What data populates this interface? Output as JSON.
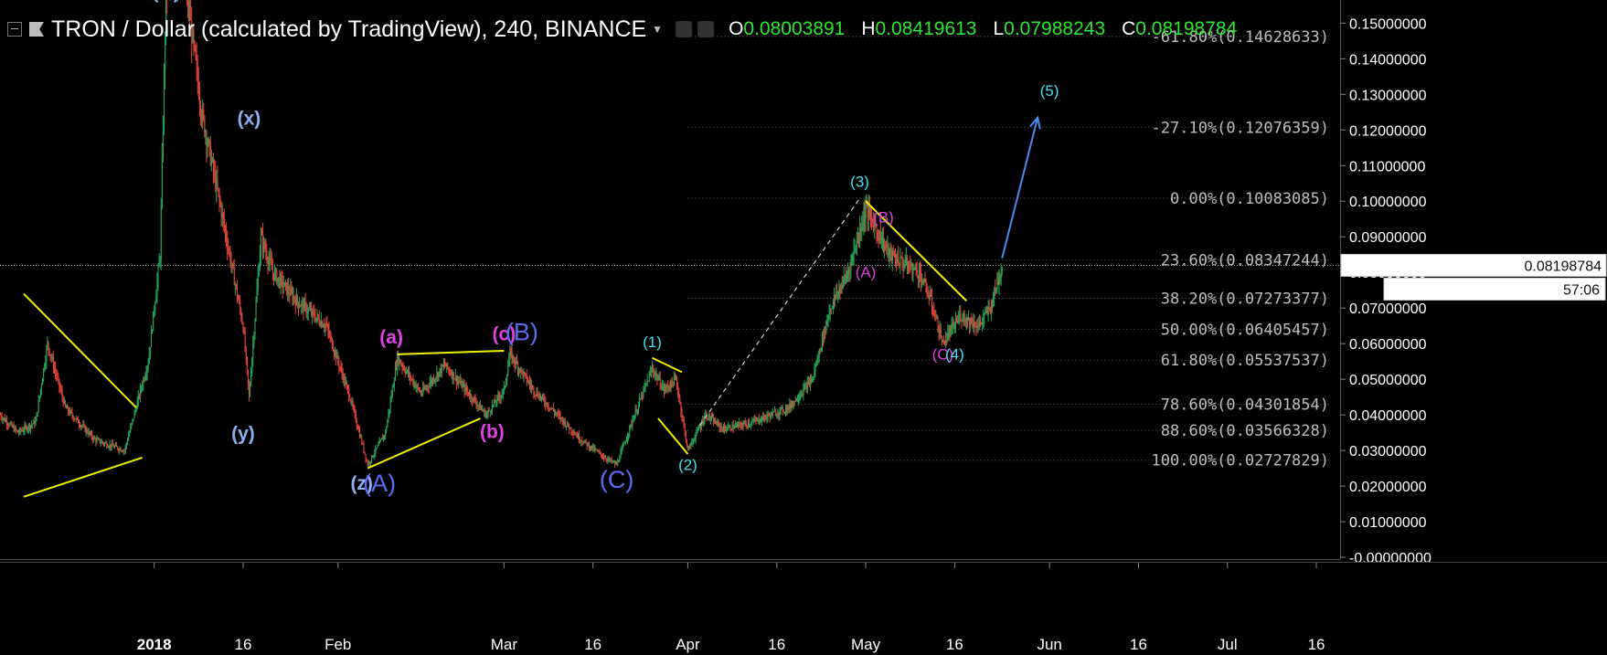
{
  "header": {
    "symbol_title": "TRON / Dollar (calculated by TradingView), 240, BINANCE",
    "ohlc": [
      {
        "key": "O",
        "value": "0.08003891"
      },
      {
        "key": "H",
        "value": "0.08419613"
      },
      {
        "key": "L",
        "value": "0.07988243"
      },
      {
        "key": "C",
        "value": "0.08198784"
      }
    ]
  },
  "colors": {
    "background": "#000000",
    "up": "#26a65b",
    "down": "#e0443a",
    "trendline": "#f0f000",
    "wave_cyan": "#40e0f0",
    "wave_magenta": "#e040e0",
    "wave_blue": "#5a6cf0",
    "wave_lightblue": "#8fb0f0",
    "arrow": "#4a8ae8",
    "axis_text": "#ffffff",
    "ohlc_value": "#2ee62e"
  },
  "chart_data": {
    "type": "candlestick",
    "price_axis": {
      "range": [
        -0.0005,
        0.1565
      ],
      "ticks": [
        "0.15000000",
        "0.14000000",
        "0.13000000",
        "0.12000000",
        "0.11000000",
        "0.10000000",
        "0.09000000",
        "0.08000000",
        "0.07000000",
        "0.06000000",
        "0.05000000",
        "0.04000000",
        "0.03000000",
        "0.02000000",
        "0.01000000",
        "-0.00000000"
      ],
      "tick_values": [
        0.15,
        0.14,
        0.13,
        0.12,
        0.11,
        0.1,
        0.09,
        0.08,
        0.07,
        0.06,
        0.05,
        0.04,
        0.03,
        0.02,
        0.01,
        0.0
      ],
      "current_price": "0.08198784",
      "countdown": "57:06"
    },
    "time_axis": {
      "range": [
        "2017-12-06",
        "2018-07-20"
      ],
      "labels": [
        {
          "text": "2018",
          "date": "2018-01-01"
        },
        {
          "text": "16",
          "date": "2018-01-16"
        },
        {
          "text": "Feb",
          "date": "2018-02-01"
        },
        {
          "text": "Mar",
          "date": "2018-03-01"
        },
        {
          "text": "16",
          "date": "2018-03-16"
        },
        {
          "text": "Apr",
          "date": "2018-04-01"
        },
        {
          "text": "16",
          "date": "2018-04-16"
        },
        {
          "text": "May",
          "date": "2018-05-01"
        },
        {
          "text": "16",
          "date": "2018-05-16"
        },
        {
          "text": "Jun",
          "date": "2018-06-01"
        },
        {
          "text": "16",
          "date": "2018-06-16"
        },
        {
          "text": "Jul",
          "date": "2018-07-01"
        },
        {
          "text": "16",
          "date": "2018-07-16"
        }
      ]
    },
    "price_path": [
      [
        "2017-12-06",
        0.04
      ],
      [
        "2017-12-09",
        0.035
      ],
      [
        "2017-12-12",
        0.038
      ],
      [
        "2017-12-14",
        0.06
      ],
      [
        "2017-12-17",
        0.042
      ],
      [
        "2017-12-22",
        0.033
      ],
      [
        "2017-12-27",
        0.03
      ],
      [
        "2017-12-31",
        0.055
      ],
      [
        "2018-01-02",
        0.085
      ],
      [
        "2018-01-03",
        0.16
      ],
      [
        "2018-01-06",
        0.165
      ],
      [
        "2018-01-09",
        0.125
      ],
      [
        "2018-01-12",
        0.1
      ],
      [
        "2018-01-16",
        0.065
      ],
      [
        "2018-01-17",
        0.045
      ],
      [
        "2018-01-19",
        0.09
      ],
      [
        "2018-01-21",
        0.08
      ],
      [
        "2018-01-25",
        0.072
      ],
      [
        "2018-01-30",
        0.065
      ],
      [
        "2018-02-03",
        0.045
      ],
      [
        "2018-02-06",
        0.026
      ],
      [
        "2018-02-09",
        0.035
      ],
      [
        "2018-02-11",
        0.056
      ],
      [
        "2018-02-15",
        0.046
      ],
      [
        "2018-02-19",
        0.054
      ],
      [
        "2018-02-23",
        0.046
      ],
      [
        "2018-02-26",
        0.04
      ],
      [
        "2018-03-01",
        0.047
      ],
      [
        "2018-03-02",
        0.057
      ],
      [
        "2018-03-06",
        0.047
      ],
      [
        "2018-03-10",
        0.04
      ],
      [
        "2018-03-14",
        0.033
      ],
      [
        "2018-03-18",
        0.028
      ],
      [
        "2018-03-20",
        0.026
      ],
      [
        "2018-03-23",
        0.04
      ],
      [
        "2018-03-26",
        0.053
      ],
      [
        "2018-03-28",
        0.047
      ],
      [
        "2018-03-30",
        0.05
      ],
      [
        "2018-04-01",
        0.03
      ],
      [
        "2018-04-04",
        0.04
      ],
      [
        "2018-04-07",
        0.036
      ],
      [
        "2018-04-12",
        0.038
      ],
      [
        "2018-04-18",
        0.042
      ],
      [
        "2018-04-22",
        0.05
      ],
      [
        "2018-04-25",
        0.07
      ],
      [
        "2018-04-28",
        0.08
      ],
      [
        "2018-05-01",
        0.098
      ],
      [
        "2018-05-05",
        0.085
      ],
      [
        "2018-05-10",
        0.08
      ],
      [
        "2018-05-12",
        0.072
      ],
      [
        "2018-05-14",
        0.06
      ],
      [
        "2018-05-17",
        0.068
      ],
      [
        "2018-05-20",
        0.065
      ],
      [
        "2018-05-22",
        0.07
      ],
      [
        "2018-05-24",
        0.082
      ]
    ],
    "fibonacci_levels": [
      {
        "label": "-61.80%(0.14628633)",
        "price": 0.14628633
      },
      {
        "label": "-27.10%(0.12076359)",
        "price": 0.12076359
      },
      {
        "label": "0.00%(0.10083085)",
        "price": 0.10083085
      },
      {
        "label": "23.60%(0.08347244)",
        "price": 0.08347244
      },
      {
        "label": "38.20%(0.07273377)",
        "price": 0.07273377
      },
      {
        "label": "50.00%(0.06405457)",
        "price": 0.06405457
      },
      {
        "label": "61.80%(0.05537537)",
        "price": 0.05537537
      },
      {
        "label": "78.60%(0.04301854)",
        "price": 0.04301854
      },
      {
        "label": "88.60%(0.03566328)",
        "price": 0.03566328
      },
      {
        "label": "100.00%(0.02727829)",
        "price": 0.02727829
      }
    ],
    "wave_labels": [
      {
        "text": "(w)",
        "date": "2018-01-03",
        "price": 0.157,
        "color": "lightblue",
        "size": "lg"
      },
      {
        "text": "(x)",
        "date": "2018-01-17",
        "price": 0.1215,
        "color": "lightblue",
        "size": "lg"
      },
      {
        "text": "(y)",
        "date": "2018-01-16",
        "price": 0.033,
        "color": "lightblue",
        "size": "lg"
      },
      {
        "text": "(z)",
        "date": "2018-02-05",
        "price": 0.019,
        "color": "lightblue",
        "size": "lg"
      },
      {
        "text": "(A)",
        "date": "2018-02-08",
        "price": 0.0185,
        "color": "blue",
        "size": "xl"
      },
      {
        "text": "(a)",
        "date": "2018-02-10",
        "price": 0.06,
        "color": "magenta",
        "size": "lg"
      },
      {
        "text": "(b)",
        "date": "2018-02-27",
        "price": 0.0335,
        "color": "magenta",
        "size": "lg"
      },
      {
        "text": "(c)",
        "date": "2018-03-01",
        "price": 0.061,
        "color": "magenta",
        "size": "lg"
      },
      {
        "text": "(B)",
        "date": "2018-03-04",
        "price": 0.061,
        "color": "blue",
        "size": "xl"
      },
      {
        "text": "(C)",
        "date": "2018-03-20",
        "price": 0.0195,
        "color": "blue",
        "size": "xl"
      },
      {
        "text": "(1)",
        "date": "2018-03-26",
        "price": 0.059,
        "color": "cyan",
        "size": "md"
      },
      {
        "text": "(2)",
        "date": "2018-04-01",
        "price": 0.0245,
        "color": "cyan",
        "size": "md"
      },
      {
        "text": "(3)",
        "date": "2018-04-30",
        "price": 0.104,
        "color": "cyan",
        "size": "md"
      },
      {
        "text": "(A)",
        "date": "2018-05-01",
        "price": 0.0786,
        "color": "magenta",
        "size": "md"
      },
      {
        "text": "(B)",
        "date": "2018-05-04",
        "price": 0.094,
        "color": "magenta",
        "size": "md"
      },
      {
        "text": "(C)",
        "date": "2018-05-14",
        "price": 0.0555,
        "color": "magenta",
        "size": "md"
      },
      {
        "text": "(4)",
        "date": "2018-05-16",
        "price": 0.0555,
        "color": "cyan",
        "size": "md"
      },
      {
        "text": "(5)",
        "date": "2018-06-01",
        "price": 0.1295,
        "color": "cyan",
        "size": "md"
      }
    ],
    "trendlines": [
      {
        "from": [
          "2017-12-10",
          0.074
        ],
        "to": [
          "2017-12-29",
          0.042
        ]
      },
      {
        "from": [
          "2017-12-10",
          0.017
        ],
        "to": [
          "2017-12-30",
          0.028
        ]
      },
      {
        "from": [
          "2018-02-11",
          0.057
        ],
        "to": [
          "2018-03-01",
          0.058
        ]
      },
      {
        "from": [
          "2018-02-06",
          0.025
        ],
        "to": [
          "2018-02-25",
          0.039
        ]
      },
      {
        "from": [
          "2018-03-26",
          0.056
        ],
        "to": [
          "2018-03-31",
          0.052
        ]
      },
      {
        "from": [
          "2018-03-27",
          0.039
        ],
        "to": [
          "2018-04-01",
          0.029
        ]
      },
      {
        "from": [
          "2018-05-01",
          0.1
        ],
        "to": [
          "2018-05-18",
          0.072
        ]
      }
    ],
    "dashed_line": {
      "from": [
        "2018-04-03",
        0.037
      ],
      "to": [
        "2018-04-30",
        0.1008
      ]
    },
    "arrow": {
      "from": [
        "2018-05-24",
        0.084
      ],
      "to": [
        "2018-05-30",
        0.1235
      ]
    },
    "grid": false
  }
}
